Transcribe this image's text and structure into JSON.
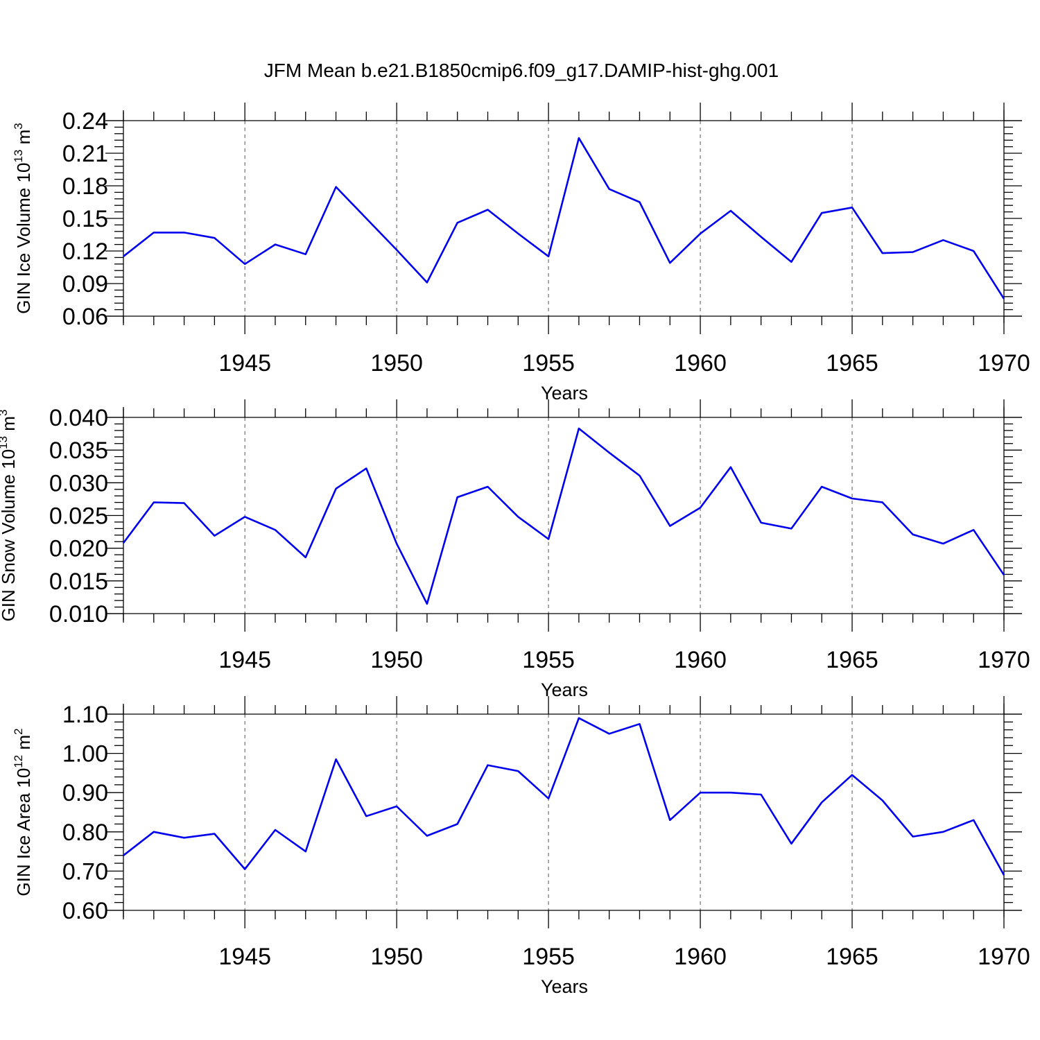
{
  "figure": {
    "title": "JFM Mean b.e21.B1850cmip6.f09_g17.DAMIP-hist-ghg.001",
    "line_color": "#0000ee"
  },
  "chart_data": [
    {
      "type": "line",
      "ylabel": "GIN Ice Volume 10",
      "ylabel_exp": "13",
      "ylabel_unit": "m",
      "ylabel_unit_exp": "3",
      "xlabel": "Years",
      "xlim": [
        1941,
        1970
      ],
      "ylim": [
        0.06,
        0.24
      ],
      "xticks": [
        1945,
        1950,
        1955,
        1960,
        1965,
        1970
      ],
      "yticks": [
        0.06,
        0.09,
        0.12,
        0.15,
        0.18,
        0.21,
        0.24
      ],
      "ytick_labels": [
        "0.06",
        "0.09",
        "0.12",
        "0.15",
        "0.18",
        "0.21",
        "0.24"
      ],
      "grid": "vertical dashed at major x ticks",
      "x": [
        1941,
        1942,
        1943,
        1944,
        1945,
        1946,
        1947,
        1948,
        1949,
        1950,
        1951,
        1952,
        1953,
        1954,
        1955,
        1956,
        1957,
        1958,
        1959,
        1960,
        1961,
        1962,
        1963,
        1964,
        1965,
        1966,
        1967,
        1968,
        1969,
        1970
      ],
      "series": [
        {
          "values": [
            0.115,
            0.137,
            0.137,
            0.132,
            0.108,
            0.126,
            0.117,
            0.179,
            0.15,
            0.121,
            0.091,
            0.146,
            0.158,
            0.136,
            0.115,
            0.224,
            0.177,
            0.165,
            0.109,
            0.136,
            0.157,
            0.133,
            0.11,
            0.155,
            0.16,
            0.118,
            0.119,
            0.13,
            0.12,
            0.076
          ]
        }
      ]
    },
    {
      "type": "line",
      "ylabel": "GIN Snow Volume 10",
      "ylabel_exp": "13",
      "ylabel_unit": "m",
      "ylabel_unit_exp": "3",
      "xlabel": "Years",
      "xlim": [
        1941,
        1970
      ],
      "ylim": [
        0.01,
        0.04
      ],
      "xticks": [
        1945,
        1950,
        1955,
        1960,
        1965,
        1970
      ],
      "yticks": [
        0.01,
        0.015,
        0.02,
        0.025,
        0.03,
        0.035,
        0.04
      ],
      "ytick_labels": [
        "0.010",
        "0.015",
        "0.020",
        "0.025",
        "0.030",
        "0.035",
        "0.040"
      ],
      "grid": "vertical dashed at major x ticks",
      "x": [
        1941,
        1942,
        1943,
        1944,
        1945,
        1946,
        1947,
        1948,
        1949,
        1950,
        1951,
        1952,
        1953,
        1954,
        1955,
        1956,
        1957,
        1958,
        1959,
        1960,
        1961,
        1962,
        1963,
        1964,
        1965,
        1966,
        1967,
        1968,
        1969,
        1970
      ],
      "series": [
        {
          "values": [
            0.0208,
            0.027,
            0.0269,
            0.0219,
            0.0248,
            0.0228,
            0.0186,
            0.0291,
            0.0322,
            0.0207,
            0.0115,
            0.0278,
            0.0294,
            0.0248,
            0.0214,
            0.0383,
            0.0346,
            0.0311,
            0.0234,
            0.0262,
            0.0324,
            0.0239,
            0.023,
            0.0294,
            0.0276,
            0.027,
            0.0221,
            0.0207,
            0.0228,
            0.0159
          ]
        }
      ]
    },
    {
      "type": "line",
      "ylabel": "GIN Ice Area 10",
      "ylabel_exp": "12",
      "ylabel_unit": "m",
      "ylabel_unit_exp": "2",
      "xlabel": "Years",
      "xlim": [
        1941,
        1970
      ],
      "ylim": [
        0.6,
        1.1
      ],
      "xticks": [
        1945,
        1950,
        1955,
        1960,
        1965,
        1970
      ],
      "yticks": [
        0.6,
        0.7,
        0.8,
        0.9,
        1.0,
        1.1
      ],
      "ytick_labels": [
        "0.60",
        "0.70",
        "0.80",
        "0.90",
        "1.00",
        "1.10"
      ],
      "grid": "vertical dashed at major x ticks",
      "x": [
        1941,
        1942,
        1943,
        1944,
        1945,
        1946,
        1947,
        1948,
        1949,
        1950,
        1951,
        1952,
        1953,
        1954,
        1955,
        1956,
        1957,
        1958,
        1959,
        1960,
        1961,
        1962,
        1963,
        1964,
        1965,
        1966,
        1967,
        1968,
        1969,
        1970
      ],
      "series": [
        {
          "values": [
            0.74,
            0.8,
            0.785,
            0.795,
            0.705,
            0.805,
            0.75,
            0.985,
            0.84,
            0.865,
            0.79,
            0.82,
            0.97,
            0.955,
            0.885,
            1.09,
            1.05,
            1.075,
            0.83,
            0.9,
            0.9,
            0.895,
            0.77,
            0.875,
            0.945,
            0.88,
            0.788,
            0.8,
            0.83,
            0.69
          ]
        }
      ]
    }
  ]
}
